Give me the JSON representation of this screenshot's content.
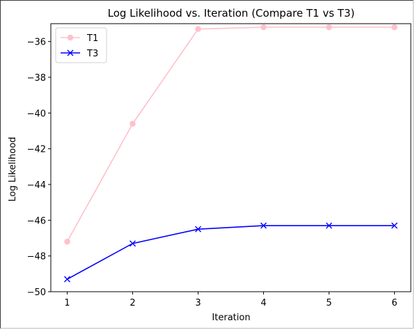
{
  "chart_data": {
    "type": "line",
    "title": "Log Likelihood vs. Iteration (Compare T1 vs T3)",
    "xlabel": "Iteration",
    "ylabel": "Log Likelihood",
    "x": [
      1,
      2,
      3,
      4,
      5,
      6
    ],
    "xticks": [
      "1",
      "2",
      "3",
      "4",
      "5",
      "6"
    ],
    "yticks": [
      "−36",
      "−38",
      "−40",
      "−42",
      "−44",
      "−46",
      "−48",
      "−50"
    ],
    "ytick_values": [
      -36,
      -38,
      -40,
      -42,
      -44,
      -46,
      -48,
      -50
    ],
    "xlim": [
      0.75,
      6.25
    ],
    "ylim": [
      -50,
      -35
    ],
    "grid": false,
    "legend_position": "top-left",
    "series": [
      {
        "name": "T1",
        "color": "#ffc0cb",
        "marker": "circle",
        "values": [
          -47.2,
          -40.6,
          -35.3,
          -35.2,
          -35.2,
          -35.2
        ]
      },
      {
        "name": "T3",
        "color": "#0000ff",
        "marker": "x",
        "values": [
          -49.3,
          -47.3,
          -46.5,
          -46.3,
          -46.3,
          -46.3
        ]
      }
    ]
  }
}
